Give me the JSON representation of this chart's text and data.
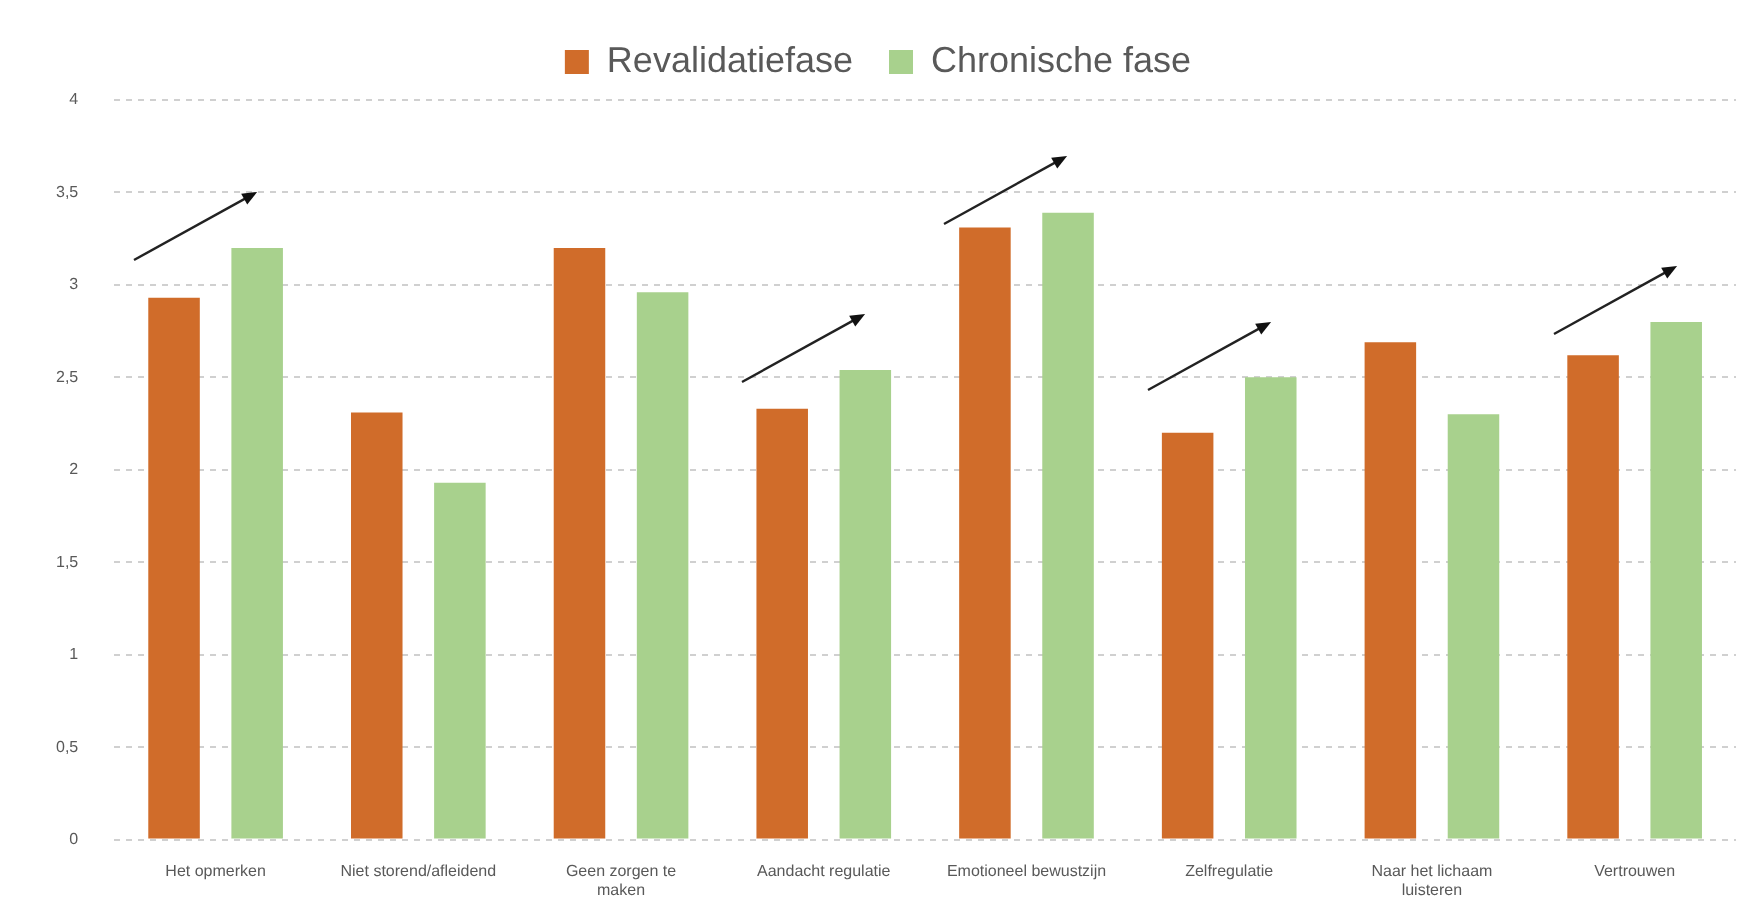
{
  "chart_data": {
    "type": "bar",
    "categories": [
      "Het opmerken",
      "Niet storend/afleidend",
      "Geen zorgen te maken",
      "Aandacht regulatie",
      "Emotioneel bewustzijn",
      "Zelfregulatie",
      "Naar het lichaam luisteren",
      "Vertrouwen"
    ],
    "series": [
      {
        "name": "Revalidatiefase",
        "color": "#d06c2a",
        "values": [
          2.93,
          2.31,
          3.2,
          2.33,
          3.31,
          2.2,
          2.69,
          2.62
        ]
      },
      {
        "name": "Chronische fase",
        "color": "#a8d18d",
        "values": [
          3.2,
          1.93,
          2.96,
          2.54,
          3.39,
          2.5,
          2.3,
          2.8
        ]
      }
    ],
    "ylim": [
      0,
      4
    ],
    "yticks": [
      0,
      {
        "value": 0.5,
        "label": "0,5"
      },
      1,
      {
        "value": 1.5,
        "label": "1,5"
      },
      2,
      {
        "value": 2.5,
        "label": "2,5"
      },
      3,
      {
        "value": 3.5,
        "label": "3,5"
      },
      4
    ],
    "grid": "y",
    "legend": "top"
  }
}
